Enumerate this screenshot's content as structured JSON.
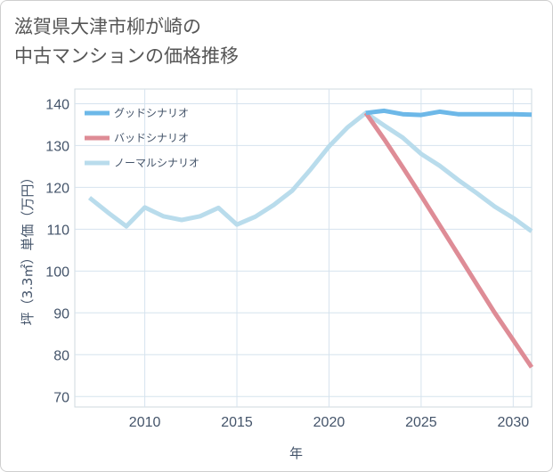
{
  "title_line1": "滋賀県大津市柳が崎の",
  "title_line2": "中古マンションの価格推移",
  "chart_data": {
    "type": "line",
    "title": "滋賀県大津市柳が崎の中古マンションの価格推移",
    "xlabel": "年",
    "ylabel": "坪（3.3㎡）単価（万円）",
    "xlim": [
      2006.2,
      2031
    ],
    "ylim": [
      67.5,
      143.5
    ],
    "xticks": [
      2010,
      2015,
      2020,
      2025,
      2030
    ],
    "yticks": [
      70,
      80,
      90,
      100,
      110,
      120,
      130,
      140
    ],
    "grid": true,
    "legend_position": "top-left",
    "series": [
      {
        "name": "グッドシナリオ",
        "color": "#6db8e8",
        "x": [
          2022,
          2023,
          2024,
          2025,
          2026,
          2027,
          2028,
          2029,
          2030,
          2031
        ],
        "values": [
          137.8,
          138.3,
          137.5,
          137.3,
          138.1,
          137.5,
          137.5,
          137.5,
          137.5,
          137.4
        ]
      },
      {
        "name": "バッドシナリオ",
        "color": "#de8c96",
        "x": [
          2022,
          2023,
          2024,
          2025,
          2026,
          2027,
          2028,
          2029,
          2030,
          2031
        ],
        "values": [
          137.8,
          131.5,
          124.8,
          118.0,
          111.0,
          104.0,
          97.0,
          90.0,
          83.5,
          77.0
        ]
      },
      {
        "name": "ノーマルシナリオ",
        "color": "#b9dcec",
        "x": [
          2007,
          2008,
          2009,
          2010,
          2011,
          2012,
          2013,
          2014,
          2015,
          2016,
          2017,
          2018,
          2019,
          2020,
          2021,
          2022,
          2023,
          2024,
          2025,
          2026,
          2027,
          2028,
          2029,
          2030,
          2031
        ],
        "values": [
          117.5,
          114.0,
          110.7,
          115.2,
          113.1,
          112.2,
          113.1,
          115.1,
          111.1,
          113.0,
          115.8,
          119.2,
          124.3,
          129.8,
          134.3,
          137.8,
          134.8,
          131.9,
          128.0,
          125.2,
          121.8,
          118.7,
          115.4,
          112.7,
          109.5
        ]
      }
    ]
  }
}
